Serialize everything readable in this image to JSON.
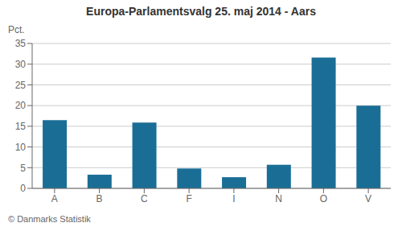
{
  "chart_data": {
    "type": "bar",
    "title": "Europa-Parlamentsvalg 25. maj 2014 - Aars",
    "ylabel": "Pct.",
    "categories": [
      "A",
      "B",
      "C",
      "F",
      "I",
      "N",
      "O",
      "V"
    ],
    "values": [
      16.5,
      3.3,
      15.9,
      4.8,
      2.7,
      5.7,
      31.6,
      20.0
    ],
    "color": "#1a6e96",
    "ylim": [
      0,
      35
    ],
    "yticks": [
      0,
      5,
      10,
      15,
      20,
      25,
      30,
      35
    ],
    "grid": true,
    "annotations": [
      "© Danmarks Statistik"
    ]
  }
}
